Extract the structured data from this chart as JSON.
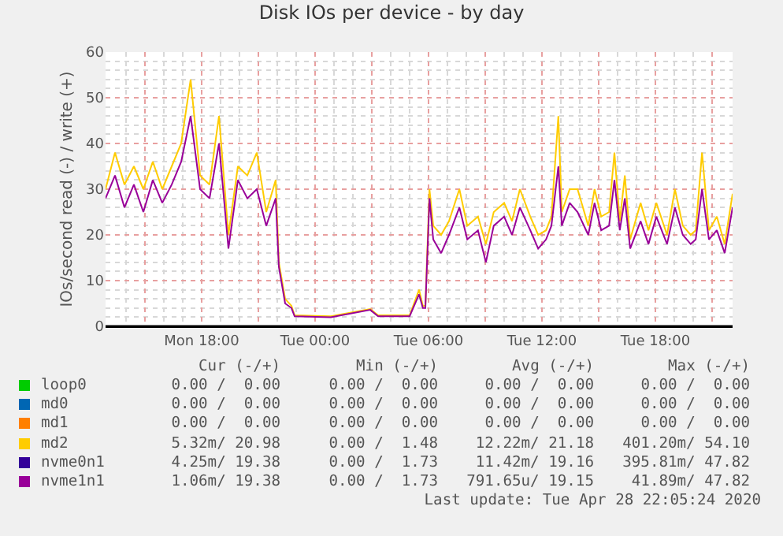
{
  "chart_data": {
    "type": "line",
    "title": "Disk IOs per device - by day",
    "ylabel": "IOs/second read (-) / write (+)",
    "x": [
      "2020-04-27T12:55",
      "2020-04-27T13:25",
      "2020-04-27T13:55",
      "2020-04-27T14:25",
      "2020-04-27T14:55",
      "2020-04-27T15:25",
      "2020-04-27T15:55",
      "2020-04-27T16:25",
      "2020-04-27T16:55",
      "2020-04-27T17:25",
      "2020-04-27T17:55",
      "2020-04-27T18:25",
      "2020-04-27T18:55",
      "2020-04-27T19:25",
      "2020-04-27T19:55",
      "2020-04-27T20:25",
      "2020-04-27T20:55",
      "2020-04-27T21:25",
      "2020-04-27T21:55",
      "2020-04-27T22:05",
      "2020-04-27T22:25",
      "2020-04-27T22:45",
      "2020-04-27T22:55",
      "2020-04-28T00:50",
      "2020-04-28T02:55",
      "2020-04-28T03:20",
      "2020-04-28T05:00",
      "2020-04-28T05:30",
      "2020-04-28T05:42",
      "2020-04-28T05:50",
      "2020-04-28T06:03",
      "2020-04-28T06:15",
      "2020-04-28T06:40",
      "2020-04-28T07:05",
      "2020-04-28T07:38",
      "2020-04-28T08:03",
      "2020-04-28T08:37",
      "2020-04-28T09:02",
      "2020-04-28T09:27",
      "2020-04-28T10:00",
      "2020-04-28T10:25",
      "2020-04-28T10:50",
      "2020-04-28T11:23",
      "2020-04-28T11:48",
      "2020-04-28T12:13",
      "2020-04-28T12:30",
      "2020-04-28T12:52",
      "2020-04-28T13:03",
      "2020-04-28T13:28",
      "2020-04-28T13:53",
      "2020-04-28T14:27",
      "2020-04-28T14:47",
      "2020-04-28T15:08",
      "2020-04-28T15:33",
      "2020-04-28T15:50",
      "2020-04-28T16:07",
      "2020-04-28T16:23",
      "2020-04-28T16:40",
      "2020-04-28T17:13",
      "2020-04-28T17:38",
      "2020-04-28T18:03",
      "2020-04-28T18:37",
      "2020-04-28T19:02",
      "2020-04-28T19:27",
      "2020-04-28T19:52",
      "2020-04-28T20:08",
      "2020-04-28T20:28",
      "2020-04-28T20:50",
      "2020-04-28T21:15",
      "2020-04-28T21:40",
      "2020-04-28T22:05"
    ],
    "series": [
      {
        "name": "loop0",
        "color": "#00cc00",
        "values": [
          null,
          null,
          null,
          null,
          null,
          null,
          null,
          null,
          null,
          null,
          null,
          null,
          null,
          null,
          null,
          null,
          null,
          null,
          null,
          null,
          null,
          null,
          null,
          null,
          null,
          null,
          null,
          null,
          null,
          null,
          null,
          null,
          null,
          null,
          null,
          null,
          null,
          null,
          null,
          null,
          null,
          null,
          null,
          null,
          null,
          null,
          null,
          null,
          null,
          null,
          null,
          null,
          null,
          null,
          null,
          null,
          null,
          null,
          null,
          null,
          null,
          null,
          null,
          null,
          null,
          null,
          null,
          null,
          null,
          null,
          null
        ]
      },
      {
        "name": "md0",
        "color": "#0066b3",
        "values": [
          null,
          null,
          null,
          null,
          null,
          null,
          null,
          null,
          null,
          null,
          null,
          null,
          null,
          null,
          null,
          null,
          null,
          null,
          null,
          null,
          null,
          null,
          null,
          null,
          null,
          null,
          null,
          null,
          null,
          null,
          null,
          null,
          null,
          null,
          null,
          null,
          null,
          null,
          null,
          null,
          null,
          null,
          null,
          null,
          null,
          null,
          null,
          null,
          null,
          null,
          null,
          null,
          null,
          null,
          null,
          null,
          null,
          null,
          null,
          null,
          null,
          null,
          null,
          null,
          null,
          null,
          null,
          null,
          null,
          null,
          null
        ]
      },
      {
        "name": "md1",
        "color": "#ff8000",
        "values": [
          null,
          null,
          null,
          null,
          null,
          null,
          null,
          null,
          null,
          null,
          null,
          null,
          null,
          null,
          null,
          null,
          null,
          null,
          null,
          null,
          null,
          null,
          null,
          null,
          null,
          null,
          null,
          null,
          null,
          null,
          null,
          null,
          null,
          null,
          null,
          null,
          null,
          null,
          null,
          null,
          null,
          null,
          null,
          null,
          null,
          null,
          null,
          null,
          null,
          null,
          null,
          null,
          null,
          null,
          null,
          null,
          null,
          null,
          null,
          null,
          null,
          null,
          null,
          null,
          null,
          null,
          null,
          null,
          null,
          null,
          null
        ]
      },
      {
        "name": "md2",
        "color": "#ffcc00",
        "values": [
          30,
          38,
          31,
          35,
          30,
          36,
          30,
          35,
          40,
          54,
          33,
          31,
          46,
          20,
          35,
          33,
          38,
          25,
          32,
          14,
          6,
          4.5,
          2.4,
          2.2,
          3.8,
          2.4,
          2.4,
          8,
          4.5,
          4.5,
          30,
          22,
          20,
          23,
          30,
          22,
          24,
          18,
          25,
          27,
          23,
          30,
          24,
          20,
          21,
          24,
          46,
          25,
          30,
          30,
          22,
          30,
          24,
          25,
          38,
          23,
          33,
          19,
          27,
          21,
          27,
          20,
          30,
          22,
          20,
          21,
          38,
          21,
          24,
          18,
          29
        ]
      },
      {
        "name": "nvme0n1",
        "color": "#330099",
        "values": [
          null,
          null,
          null,
          null,
          null,
          null,
          null,
          null,
          null,
          null,
          null,
          null,
          null,
          null,
          null,
          null,
          null,
          null,
          null,
          null,
          null,
          null,
          null,
          null,
          null,
          null,
          null,
          null,
          null,
          null,
          null,
          null,
          null,
          null,
          null,
          null,
          null,
          null,
          null,
          null,
          null,
          null,
          null,
          null,
          null,
          null,
          null,
          null,
          null,
          null,
          null,
          null,
          null,
          null,
          null,
          null,
          null,
          null,
          null,
          null,
          null,
          null,
          null,
          null,
          null,
          null,
          null,
          null,
          null,
          null,
          null
        ]
      },
      {
        "name": "nvme1n1",
        "color": "#990099",
        "values": [
          28,
          33,
          26,
          31,
          25,
          32,
          27,
          31,
          36,
          46,
          30,
          28,
          40,
          17,
          32,
          28,
          30,
          22,
          28,
          13,
          5,
          4,
          2.2,
          2.0,
          3.6,
          2.2,
          2.2,
          7,
          4,
          4,
          28,
          19,
          16,
          20,
          26,
          19,
          21,
          14,
          22,
          24,
          20,
          26,
          21,
          17,
          19,
          22,
          35,
          22,
          27,
          25,
          20,
          27,
          21,
          22,
          32,
          21,
          28,
          17,
          23,
          18,
          24,
          18,
          26,
          20,
          18,
          19,
          30,
          19,
          21,
          16,
          26
        ]
      }
    ],
    "xlim": [
      "2020-04-27T12:55",
      "2020-04-28T22:05"
    ],
    "xticks": [
      {
        "value": "2020-04-27T15:00",
        "label": null
      },
      {
        "value": "2020-04-27T18:00",
        "label": "Mon 18:00"
      },
      {
        "value": "2020-04-27T21:00",
        "label": null
      },
      {
        "value": "2020-04-28T00:00",
        "label": "Tue 00:00"
      },
      {
        "value": "2020-04-28T03:00",
        "label": null
      },
      {
        "value": "2020-04-28T06:00",
        "label": "Tue 06:00"
      },
      {
        "value": "2020-04-28T09:00",
        "label": null
      },
      {
        "value": "2020-04-28T12:00",
        "label": "Tue 12:00"
      },
      {
        "value": "2020-04-28T15:00",
        "label": null
      },
      {
        "value": "2020-04-28T18:00",
        "label": "Tue 18:00"
      },
      {
        "value": "2020-04-28T21:00",
        "label": null
      }
    ],
    "ylim": [
      0,
      60
    ],
    "yticks": [
      0,
      10,
      20,
      30,
      40,
      50,
      60
    ],
    "grid": true,
    "legend": "bottom",
    "marker": "none",
    "line_style": "solid",
    "annotations": [
      "Cur (-/+)",
      "Min (-/+)",
      "Avg (-/+)",
      "Max (-/+)",
      "0.00 /  0.00",
      "0.00 /  0.00",
      "0.00 /  0.00",
      "0.00 /  0.00",
      "0.00 /  0.00",
      "0.00 /  0.00",
      "0.00 /  0.00",
      "0.00 /  0.00",
      "0.00 /  0.00",
      "0.00 /  0.00",
      "0.00 /  0.00",
      "0.00 /  0.00",
      "5.32m/ 20.98",
      "0.00 /  1.48",
      "12.22m/ 21.18",
      "401.20m/ 54.10",
      "4.25m/ 19.38",
      "0.00 /  1.73",
      "11.42m/ 19.16",
      "395.81m/ 47.82",
      "1.06m/ 19.38",
      "0.00 /  1.73",
      "791.65u/ 19.15",
      "41.89m/ 47.82",
      "Last update: Tue Apr 28 22:05:24 2020"
    ]
  }
}
